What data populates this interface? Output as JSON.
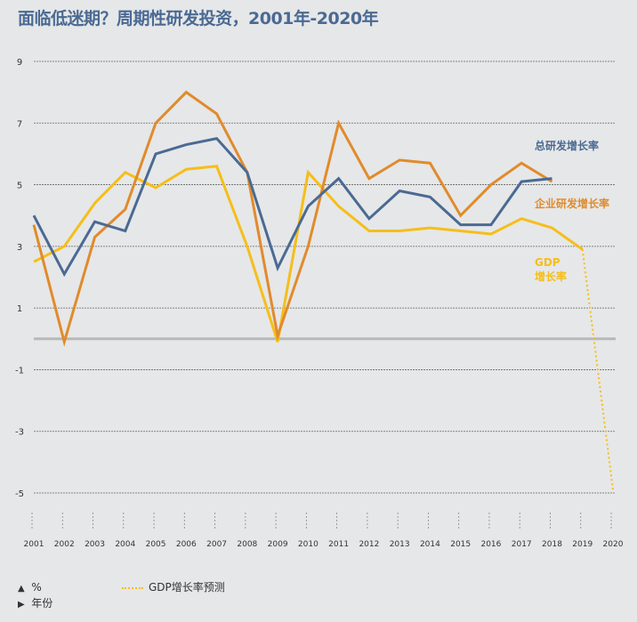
{
  "title": "面临低迷期？周期性研发投资，2001年-2020年",
  "chart_data": {
    "type": "line",
    "title": "面临低迷期？周期性研发投资，2001年-2020年",
    "x": [
      2001,
      2002,
      2003,
      2004,
      2005,
      2006,
      2007,
      2008,
      2009,
      2010,
      2011,
      2012,
      2013,
      2014,
      2015,
      2016,
      2017,
      2018,
      2019,
      2020
    ],
    "ylim": [
      -5,
      9
    ],
    "yticks": [
      9,
      7,
      5,
      3,
      1,
      -1,
      -3,
      -5
    ],
    "grid": true,
    "series": [
      {
        "name": "总研发增长率",
        "color": "#4a6a93",
        "style": "solid",
        "values": [
          4.0,
          2.1,
          3.8,
          3.5,
          6.0,
          6.3,
          6.5,
          5.4,
          2.3,
          4.3,
          5.2,
          3.9,
          4.8,
          4.6,
          3.7,
          3.7,
          5.1,
          5.2,
          null,
          null
        ]
      },
      {
        "name": "企业研发增长率",
        "color": "#e08b2c",
        "style": "solid",
        "values": [
          3.7,
          -0.1,
          3.3,
          4.2,
          7.0,
          8.0,
          7.3,
          5.4,
          0.1,
          3.0,
          7.0,
          5.2,
          5.8,
          5.7,
          4.0,
          5.0,
          5.7,
          5.1,
          null,
          null
        ]
      },
      {
        "name": "GDP\n增长率",
        "color": "#f5be1a",
        "style": "solid",
        "values": [
          2.5,
          3.0,
          4.4,
          5.4,
          4.9,
          5.5,
          5.6,
          3.0,
          -0.1,
          5.4,
          4.3,
          3.5,
          3.5,
          3.6,
          3.5,
          3.4,
          3.9,
          3.6,
          2.9,
          null
        ]
      },
      {
        "name": "GDP增长率预测",
        "color": "#f5be1a",
        "style": "dotted",
        "values": [
          null,
          null,
          null,
          null,
          null,
          null,
          null,
          null,
          null,
          null,
          null,
          null,
          null,
          null,
          null,
          null,
          null,
          null,
          2.9,
          -4.9
        ]
      }
    ],
    "labels": {
      "total": "总研发增长率",
      "business": "企业研发增长率",
      "gdp_line1": "GDP",
      "gdp_line2": "增长率"
    },
    "legend": {
      "forecast": "GDP增长率预测",
      "y_unit": "%",
      "x_unit": "年份"
    }
  }
}
